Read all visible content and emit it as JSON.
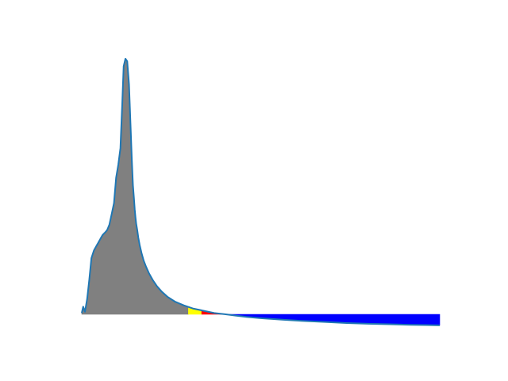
{
  "chart_data": {
    "type": "area",
    "title": "",
    "xlabel": "",
    "ylabel": "",
    "axes_visible": false,
    "grid": false,
    "legend": "none",
    "xlim": [
      0,
      100
    ],
    "ylim": [
      0,
      100
    ],
    "curve": {
      "name": "",
      "color": "#1f77b4",
      "x": [
        0,
        0.4,
        0.9,
        1.5,
        2.1,
        2.7,
        3.4,
        4.0,
        4.6,
        5.2,
        5.8,
        6.5,
        7.1,
        7.7,
        8.4,
        9.0,
        9.6,
        10.2,
        10.8,
        11.3,
        11.7,
        12.2,
        12.7,
        13.2,
        13.6,
        14.0,
        14.3,
        14.6,
        14.8,
        15.0,
        15.2,
        15.5,
        15.8,
        16.2,
        16.7,
        17.3,
        18.0,
        18.8,
        19.8,
        21.0,
        22.4,
        24.0,
        26.0,
        28.5,
        31.0,
        34.0,
        37.0,
        40.0,
        43.0,
        46.0,
        50.0,
        56.0,
        62.0,
        68.0,
        74.0,
        80.0,
        86.0,
        92.0,
        96.0,
        100.0
      ],
      "y": [
        0.5,
        3.0,
        1.0,
        6.0,
        13.5,
        22.0,
        25.0,
        26.5,
        28.0,
        29.5,
        31.0,
        32.0,
        33.0,
        35.0,
        39.5,
        43.5,
        53.5,
        58.5,
        65.0,
        82.0,
        97.0,
        100.0,
        99.0,
        90.0,
        75.0,
        60.0,
        50.5,
        45.0,
        41.0,
        38.0,
        35.5,
        33.0,
        30.0,
        27.0,
        24.0,
        21.0,
        18.5,
        16.0,
        13.5,
        11.0,
        8.8,
        6.8,
        5.0,
        3.5,
        2.3,
        1.4,
        0.5,
        0.05,
        -0.5,
        -1.0,
        -1.5,
        -2.1,
        -2.6,
        -3.0,
        -3.4,
        -3.7,
        -3.9,
        -4.1,
        -4.2,
        -4.3
      ]
    },
    "fill_regions": [
      {
        "name": "",
        "x_from": 0,
        "x_to": 29.8,
        "color": "#808080"
      },
      {
        "name": "",
        "x_from": 29.8,
        "x_to": 33.5,
        "color": "#ffff00"
      },
      {
        "name": "",
        "x_from": 33.5,
        "x_to": 40.0,
        "color": "#ff0000"
      },
      {
        "name": "",
        "x_from": 40.0,
        "x_to": 100.0,
        "color": "#0000ff"
      }
    ]
  }
}
